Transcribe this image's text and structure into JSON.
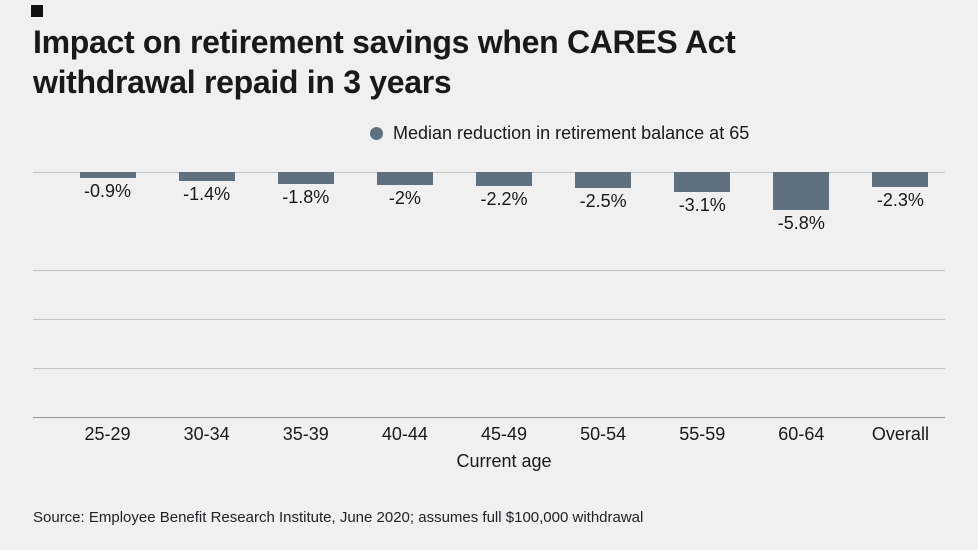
{
  "brand": {
    "corner_mark_color": "#111111"
  },
  "header": {
    "title": "Impact on retirement savings when CARES Act withdrawal repaid in 3 years"
  },
  "legend": {
    "label": "Median reduction in retirement balance at 65"
  },
  "chart_data": {
    "type": "bar",
    "title": "Impact on retirement savings when CARES Act withdrawal repaid in 3 years",
    "series_name": "Median reduction in retirement balance at 65",
    "categories": [
      "25-29",
      "30-34",
      "35-39",
      "40-44",
      "45-49",
      "50-54",
      "55-59",
      "60-64",
      "Overall"
    ],
    "values": [
      -0.9,
      -1.4,
      -1.8,
      -2.0,
      -2.2,
      -2.5,
      -3.1,
      -5.8,
      -2.3
    ],
    "value_labels": [
      "-0.9%",
      "-1.4%",
      "-1.8%",
      "-2%",
      "-2.2%",
      "-2.5%",
      "-3.1%",
      "-5.8%",
      "-2.3%"
    ],
    "xlabel": "Current age",
    "ylabel": "",
    "baseline": 0,
    "grid": true,
    "y_tick_labels_shown": false,
    "legend_position": "top"
  },
  "x_axis": {
    "label": "Current age"
  },
  "footer": {
    "source": "Source: Employee Benefit Research Institute, June 2020; assumes full $100,000 withdrawal"
  },
  "colors": {
    "background": "#f0f0f1",
    "bar": "#5f7080",
    "gridline": "#c2c2c4",
    "axis_line": "#97979b",
    "text": "#191919"
  }
}
